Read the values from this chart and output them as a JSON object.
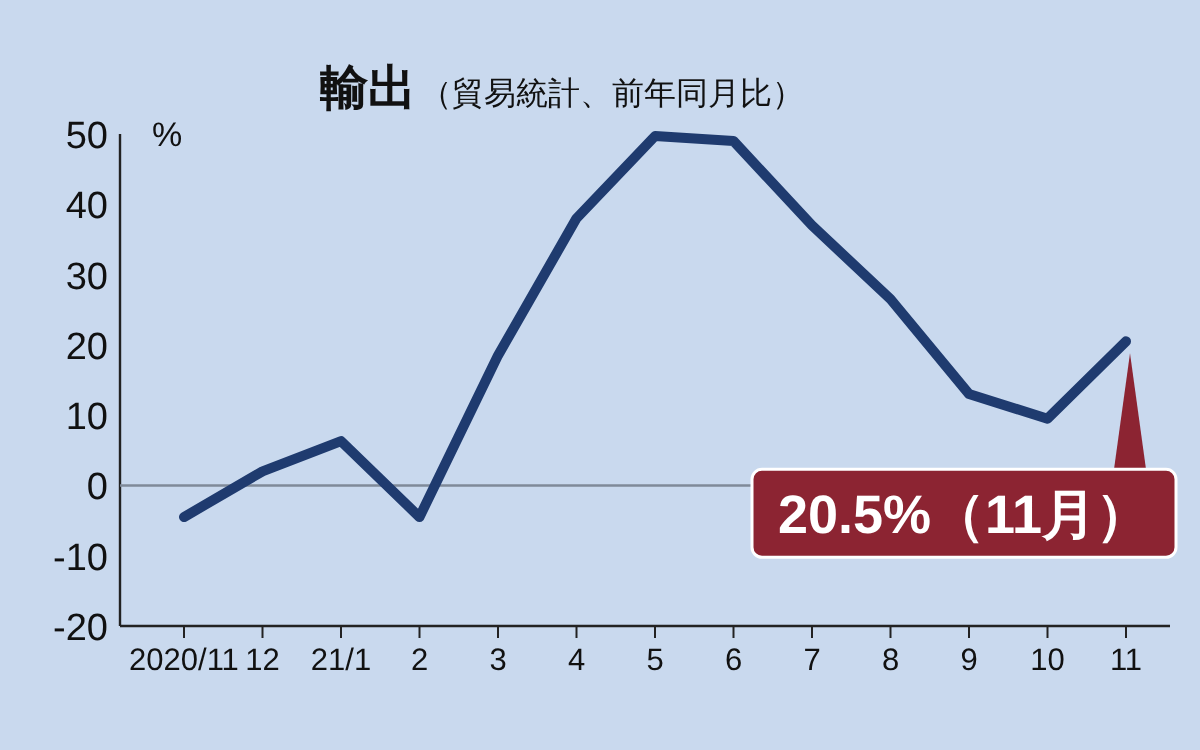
{
  "chart_data": {
    "type": "line",
    "title": "輸出",
    "subtitle": "（貿易統計、前年同月比）",
    "ylabel": "%",
    "categories": [
      "2020/11",
      "12",
      "21/1",
      "2",
      "3",
      "4",
      "5",
      "6",
      "7",
      "8",
      "9",
      "10",
      "11"
    ],
    "series": [
      {
        "color": "#1f3b6f",
        "values": [
          -4.5,
          2,
          6.3,
          -4.5,
          18.5,
          38,
          49.7,
          49,
          37,
          26.5,
          13,
          9.5,
          20.5
        ]
      }
    ],
    "ylim": [
      -20,
      50
    ],
    "yticks": [
      -20,
      -10,
      0,
      10,
      20,
      30,
      40,
      50
    ],
    "ref_lines": [
      {
        "axis": "y",
        "value": 0,
        "color": "#7f8a99"
      }
    ],
    "annotations": [
      {
        "text": "20.5%（11月）",
        "x": "11",
        "y": 20.5
      }
    ],
    "grid": false,
    "marker": "none",
    "line_style": "solid"
  }
}
